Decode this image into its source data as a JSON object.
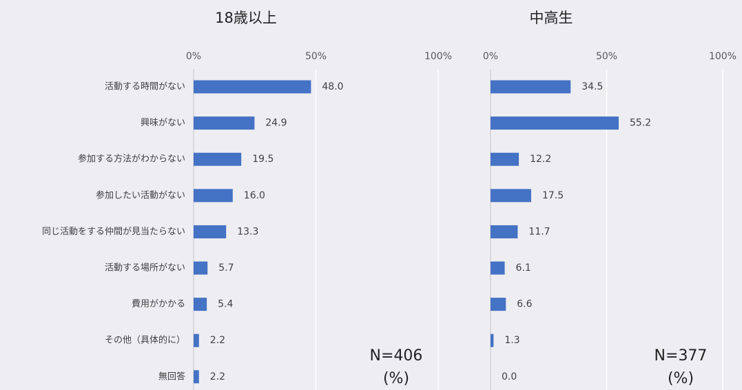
{
  "chart_data": [
    {
      "type": "barh",
      "title": "18歳以上",
      "categories": [
        "活動する時間がない",
        "興味がない",
        "参加する方法がわからない",
        "参加したい活動がない",
        "同じ活動をする仲間が見当たらない",
        "活動する場所がない",
        "費用がかかる",
        "その他（具体的に）",
        "無回答"
      ],
      "values": [
        48.0,
        24.9,
        19.5,
        16.0,
        13.3,
        5.7,
        5.4,
        2.2,
        2.2
      ],
      "value_labels": [
        "48.0",
        "24.9",
        "19.5",
        "16.0",
        "13.3",
        "5.7",
        "5.4",
        "2.2",
        "2.2"
      ],
      "color": "#4472c4",
      "xlim": [
        0,
        100
      ],
      "xticks": [
        {
          "value": 0,
          "label": "0%"
        },
        {
          "value": 50,
          "label": "50%"
        },
        {
          "value": 100,
          "label": "100%"
        }
      ],
      "grid": true,
      "annotations": [
        "N=406",
        "(%)"
      ]
    },
    {
      "type": "barh",
      "title": "中高生",
      "values": [
        34.5,
        55.2,
        12.2,
        17.5,
        11.7,
        6.1,
        6.6,
        1.3,
        0.0
      ],
      "value_labels": [
        "34.5",
        "55.2",
        "12.2",
        "17.5",
        "11.7",
        "6.1",
        "6.6",
        "1.3",
        "0.0"
      ],
      "color": "#4472c4",
      "xlim": [
        0,
        100
      ],
      "xticks": [
        {
          "value": 0,
          "label": "0%"
        },
        {
          "value": 50,
          "label": "50%"
        },
        {
          "value": 100,
          "label": "100%"
        }
      ],
      "grid": true,
      "annotations": [
        "N=377",
        "(%)"
      ]
    }
  ]
}
